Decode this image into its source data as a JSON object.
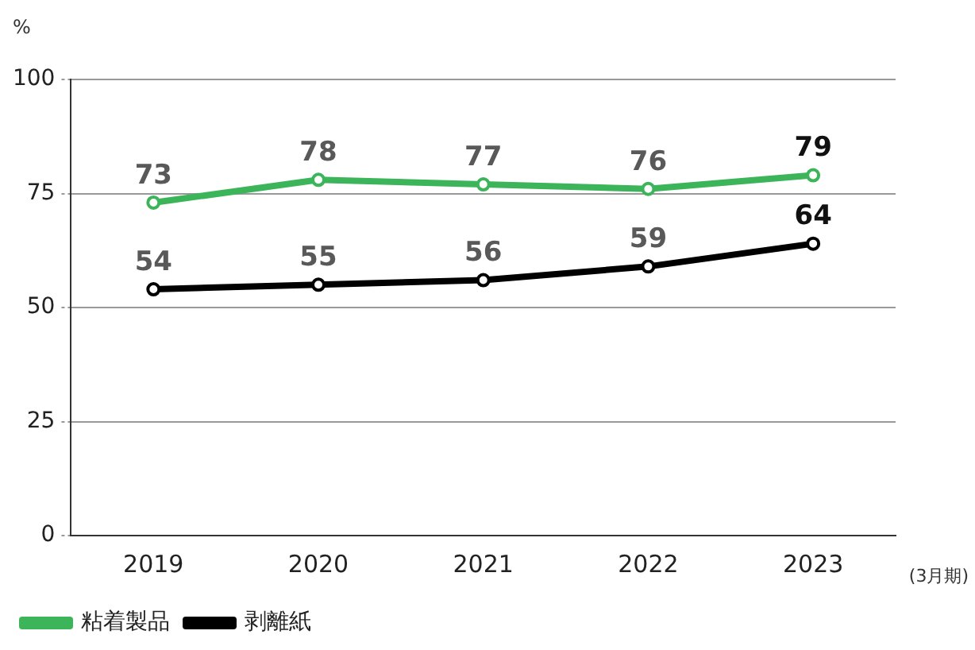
{
  "chart_data": {
    "type": "line",
    "ylabel": "%",
    "categories": [
      "2019",
      "2020",
      "2021",
      "2022",
      "2023"
    ],
    "series": [
      {
        "name": "粘着製品",
        "color": "#3cb55a",
        "values": [
          73,
          78,
          77,
          76,
          79
        ]
      },
      {
        "name": "剥離紙",
        "color": "#000000",
        "values": [
          54,
          55,
          56,
          59,
          64
        ]
      }
    ],
    "ylim": [
      0,
      100
    ],
    "yticks": [
      0,
      25,
      50,
      75,
      100
    ],
    "grid": "y",
    "legend": "bottom left",
    "marker": "circle",
    "line_style": "solid",
    "data_labels": true,
    "annotations": [
      "(3月期)"
    ]
  }
}
